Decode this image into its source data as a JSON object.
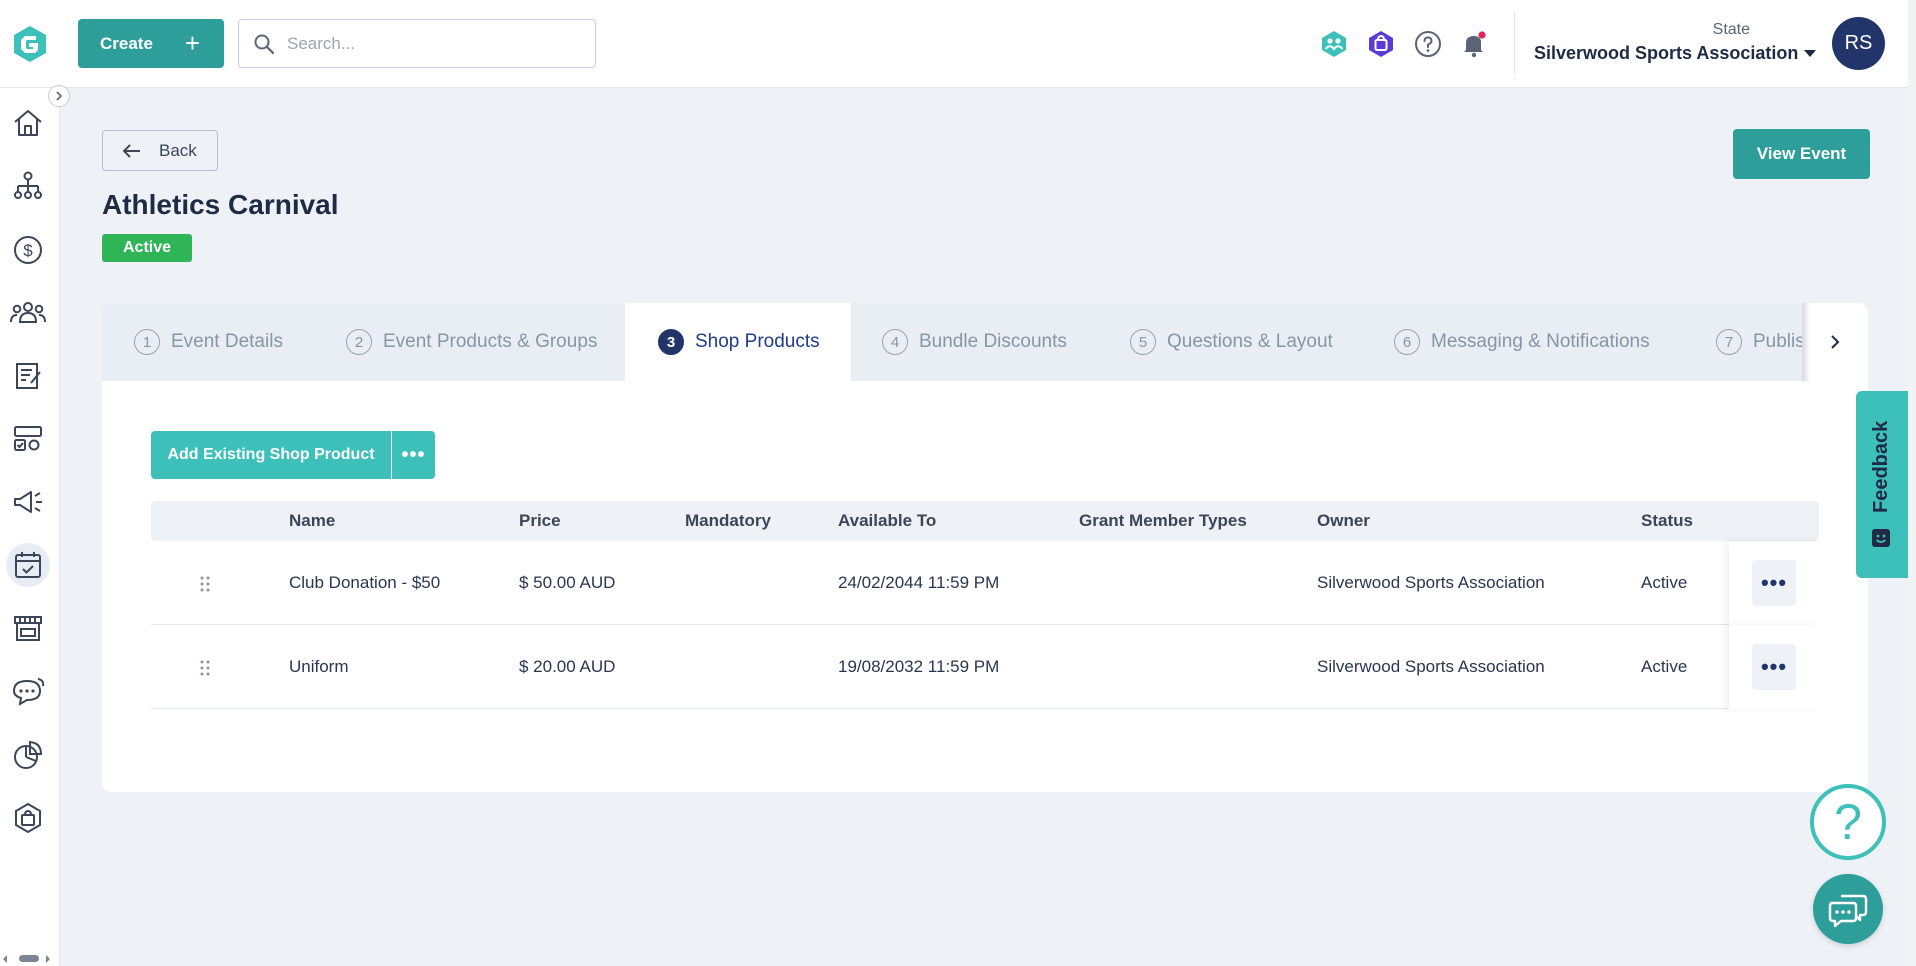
{
  "header": {
    "create_label": "Create",
    "search_placeholder": "Search...",
    "org_label": "State",
    "org_name": "Silverwood Sports Association",
    "avatar_initials": "RS"
  },
  "page": {
    "back_label": "Back",
    "title": "Athletics Carnival",
    "status": "Active",
    "view_event_label": "View Event"
  },
  "tabs": [
    {
      "num": "1",
      "label": "Event Details"
    },
    {
      "num": "2",
      "label": "Event Products & Groups"
    },
    {
      "num": "3",
      "label": "Shop Products"
    },
    {
      "num": "4",
      "label": "Bundle Discounts"
    },
    {
      "num": "5",
      "label": "Questions & Layout"
    },
    {
      "num": "6",
      "label": "Messaging & Notifications"
    },
    {
      "num": "7",
      "label": "Publish"
    }
  ],
  "active_tab": 3,
  "shop": {
    "add_label": "Add Existing Shop Product",
    "more_label": "•••",
    "columns": [
      "Name",
      "Price",
      "Mandatory",
      "Available To",
      "Grant Member Types",
      "Owner",
      "Status"
    ],
    "rows": [
      {
        "name": "Club Donation - $50",
        "price": "$ 50.00 AUD",
        "mandatory": "",
        "available_to": "24/02/2044 11:59 PM",
        "grant_member_types": "",
        "owner": "Silverwood Sports Association",
        "status": "Active"
      },
      {
        "name": "Uniform",
        "price": "$ 20.00 AUD",
        "mandatory": "",
        "available_to": "19/08/2032 11:59 PM",
        "grant_member_types": "",
        "owner": "Silverwood Sports Association",
        "status": "Active"
      }
    ]
  },
  "feedback_label": "Feedback",
  "help_glyph": "?",
  "sidebar_icons": [
    "home-icon",
    "org-chart-icon",
    "dollar-icon",
    "members-icon",
    "forms-icon",
    "competitions-icon",
    "megaphone-icon",
    "events-icon",
    "shop-icon",
    "chat-icon",
    "reports-icon",
    "bag-icon"
  ],
  "colors": {
    "brand": "#2e9e9a",
    "accent": "#3dbfba",
    "navy": "#22356b",
    "active_green": "#2fb457"
  }
}
